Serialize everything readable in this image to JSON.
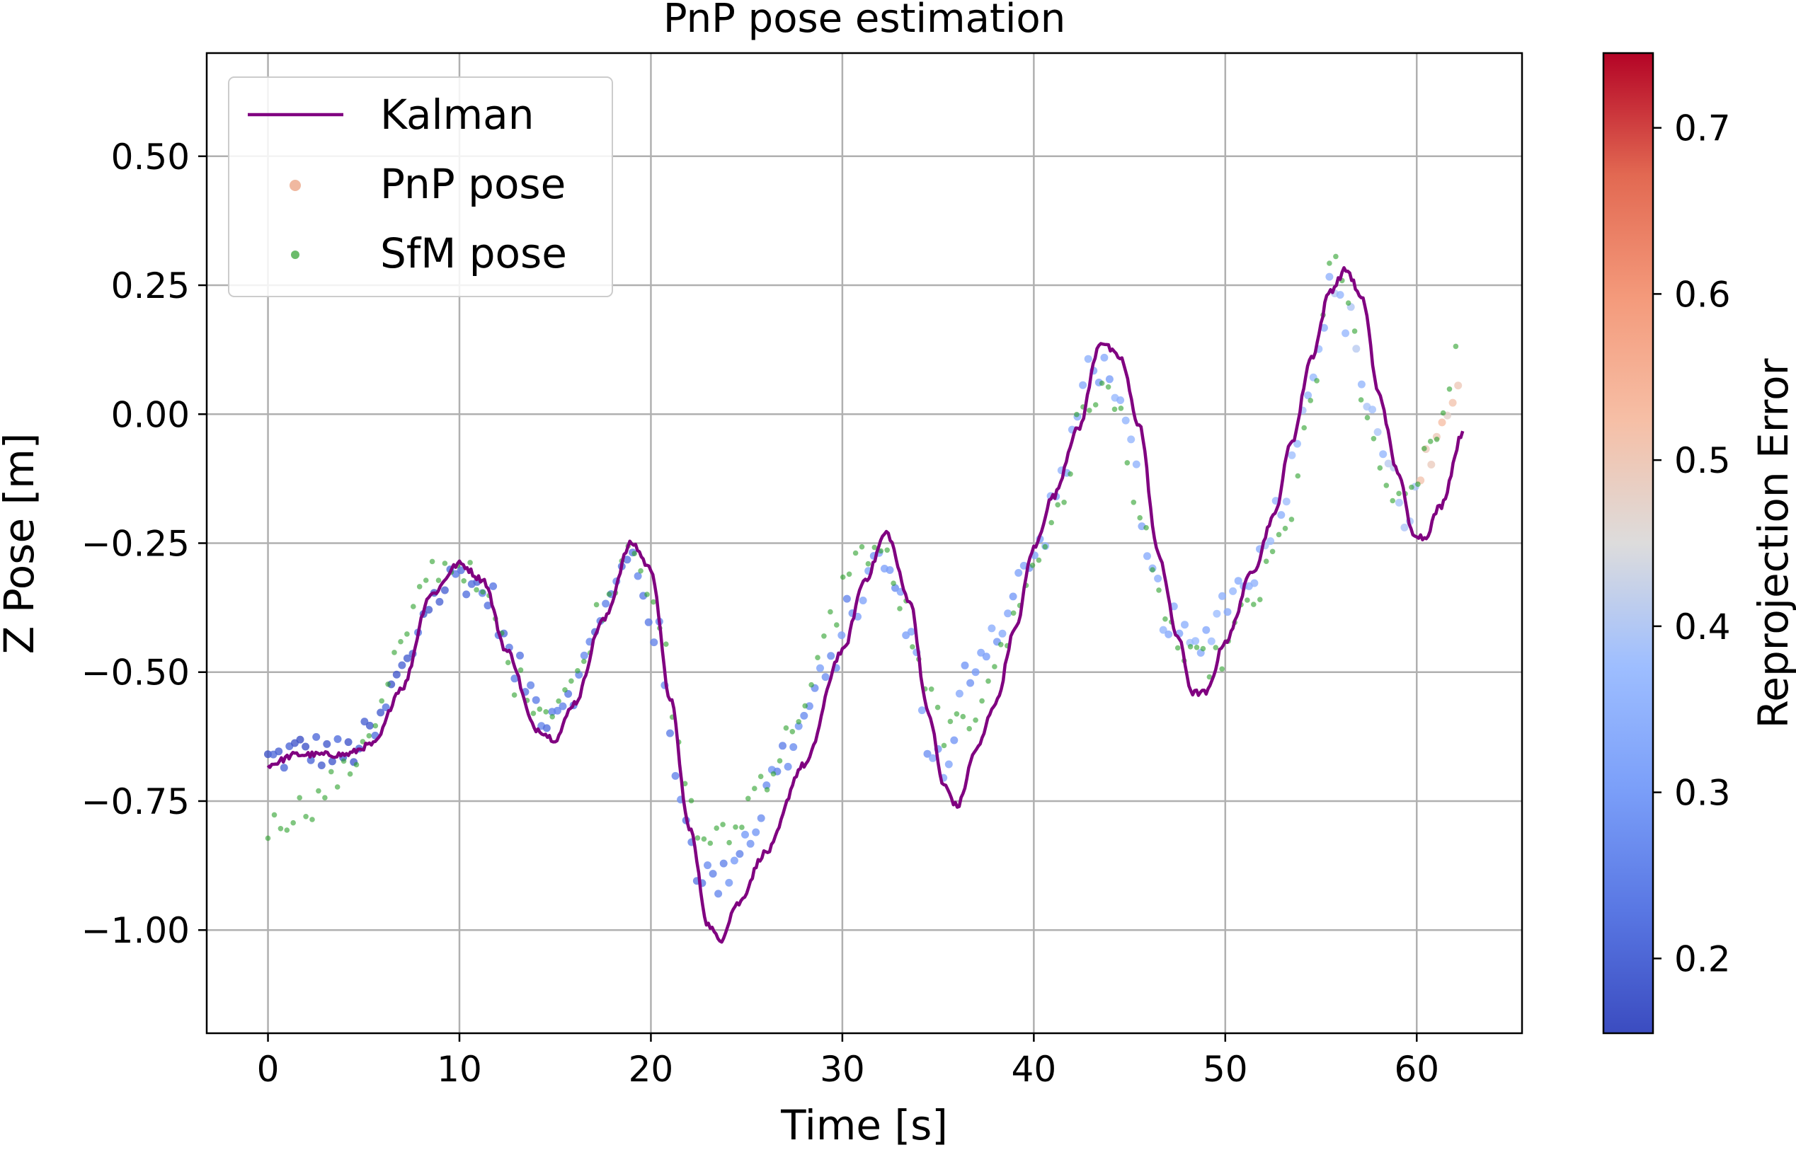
{
  "chart_data": {
    "type": "line+scatter",
    "title": "PnP pose estimation",
    "xlabel": "Time [s]",
    "ylabel": "Z Pose [m]",
    "xlim": [
      -3.2,
      65.5
    ],
    "ylim": [
      -1.2,
      0.7
    ],
    "x_ticks": [
      0,
      10,
      20,
      30,
      40,
      50,
      60
    ],
    "y_ticks": [
      0.5,
      0.25,
      0.0,
      -0.25,
      -0.5,
      -0.75,
      -1.0
    ],
    "x_tick_labels": [
      "0",
      "10",
      "20",
      "30",
      "40",
      "50",
      "60"
    ],
    "y_tick_labels": [
      "0.50",
      "0.25",
      "0.00",
      "−0.25",
      "−0.50",
      "−0.75",
      "−1.00"
    ],
    "grid": true,
    "legend": {
      "position": "top-left",
      "entries": [
        "Kalman",
        "PnP pose",
        "SfM pose"
      ]
    },
    "colorbar": {
      "label": "Reprojection Error",
      "range": [
        0.155,
        0.745
      ],
      "ticks": [
        0.2,
        0.3,
        0.4,
        0.5,
        0.6,
        0.7
      ],
      "tick_labels": [
        "0.2",
        "0.3",
        "0.4",
        "0.5",
        "0.6",
        "0.7"
      ],
      "colormap": "coolwarm"
    },
    "colors": {
      "kalman": "#800080",
      "sfm": "#2ca02c",
      "pnp_legend": "#f0b8a0"
    },
    "kalman_keyframes": [
      [
        0,
        -0.68
      ],
      [
        1.5,
        -0.66
      ],
      [
        4,
        -0.66
      ],
      [
        5.5,
        -0.64
      ],
      [
        7,
        -0.53
      ],
      [
        8.5,
        -0.35
      ],
      [
        10,
        -0.29
      ],
      [
        11.2,
        -0.32
      ],
      [
        12.5,
        -0.46
      ],
      [
        14,
        -0.61
      ],
      [
        15,
        -0.63
      ],
      [
        16,
        -0.56
      ],
      [
        17.5,
        -0.4
      ],
      [
        19,
        -0.25
      ],
      [
        20,
        -0.3
      ],
      [
        21,
        -0.55
      ],
      [
        22,
        -0.8
      ],
      [
        23,
        -0.99
      ],
      [
        23.6,
        -1.02
      ],
      [
        24.5,
        -0.95
      ],
      [
        26,
        -0.85
      ],
      [
        28,
        -0.68
      ],
      [
        30,
        -0.46
      ],
      [
        31.2,
        -0.32
      ],
      [
        32.3,
        -0.23
      ],
      [
        33.5,
        -0.36
      ],
      [
        34.5,
        -0.58
      ],
      [
        35.3,
        -0.72
      ],
      [
        36,
        -0.76
      ],
      [
        37,
        -0.65
      ],
      [
        38,
        -0.56
      ],
      [
        39,
        -0.42
      ],
      [
        40,
        -0.26
      ],
      [
        41,
        -0.16
      ],
      [
        42.3,
        -0.03
      ],
      [
        43.5,
        0.14
      ],
      [
        44.5,
        0.11
      ],
      [
        45.5,
        -0.02
      ],
      [
        46.5,
        -0.27
      ],
      [
        47.5,
        -0.43
      ],
      [
        48.3,
        -0.54
      ],
      [
        49,
        -0.54
      ],
      [
        50,
        -0.44
      ],
      [
        51.5,
        -0.3
      ],
      [
        52.5,
        -0.2
      ],
      [
        53.5,
        -0.05
      ],
      [
        54.5,
        0.11
      ],
      [
        55.5,
        0.24
      ],
      [
        56.3,
        0.28
      ],
      [
        57.2,
        0.22
      ],
      [
        58,
        0.04
      ],
      [
        59,
        -0.11
      ],
      [
        59.8,
        -0.23
      ],
      [
        60.4,
        -0.24
      ],
      [
        61.2,
        -0.18
      ],
      [
        62.5,
        -0.03
      ]
    ],
    "pnp_keyframes": [
      [
        0,
        -0.67
      ],
      [
        2,
        -0.65
      ],
      [
        4,
        -0.66
      ],
      [
        5.5,
        -0.62
      ],
      [
        7,
        -0.5
      ],
      [
        8.5,
        -0.36
      ],
      [
        10,
        -0.31
      ],
      [
        11.5,
        -0.35
      ],
      [
        13,
        -0.5
      ],
      [
        14.5,
        -0.58
      ],
      [
        16,
        -0.53
      ],
      [
        17.5,
        -0.38
      ],
      [
        19,
        -0.28
      ],
      [
        20.3,
        -0.42
      ],
      [
        21.3,
        -0.7
      ],
      [
        22.5,
        -0.88
      ],
      [
        23.5,
        -0.91
      ],
      [
        25,
        -0.82
      ],
      [
        27,
        -0.66
      ],
      [
        29,
        -0.52
      ],
      [
        30.5,
        -0.38
      ],
      [
        32,
        -0.28
      ],
      [
        33.5,
        -0.4
      ],
      [
        34.5,
        -0.64
      ],
      [
        35.5,
        -0.7
      ],
      [
        36.5,
        -0.5
      ],
      [
        38,
        -0.42
      ],
      [
        40,
        -0.28
      ],
      [
        41.5,
        -0.12
      ],
      [
        43,
        0.1
      ],
      [
        44,
        0.08
      ],
      [
        45,
        -0.06
      ],
      [
        46,
        -0.3
      ],
      [
        47,
        -0.4
      ],
      [
        48.5,
        -0.46
      ],
      [
        50,
        -0.36
      ],
      [
        51.5,
        -0.3
      ],
      [
        53,
        -0.16
      ],
      [
        54.5,
        0.08
      ],
      [
        55.5,
        0.24
      ],
      [
        56.5,
        0.18
      ],
      [
        57.5,
        0.02
      ],
      [
        58.5,
        -0.1
      ],
      [
        59.5,
        -0.2
      ],
      [
        60.5,
        -0.1
      ],
      [
        61.5,
        -0.04
      ],
      [
        62.3,
        0.08
      ]
    ],
    "sfm_keyframes": [
      [
        0,
        -0.8
      ],
      [
        2,
        -0.76
      ],
      [
        4,
        -0.7
      ],
      [
        5.5,
        -0.6
      ],
      [
        7,
        -0.45
      ],
      [
        8.5,
        -0.3
      ],
      [
        10,
        -0.29
      ],
      [
        11.5,
        -0.37
      ],
      [
        13,
        -0.52
      ],
      [
        14.5,
        -0.57
      ],
      [
        16,
        -0.52
      ],
      [
        17.5,
        -0.37
      ],
      [
        19,
        -0.24
      ],
      [
        20.5,
        -0.42
      ],
      [
        21.5,
        -0.66
      ],
      [
        22.5,
        -0.82
      ],
      [
        24,
        -0.82
      ],
      [
        26,
        -0.7
      ],
      [
        28,
        -0.57
      ],
      [
        29.5,
        -0.4
      ],
      [
        30.5,
        -0.28
      ],
      [
        32,
        -0.26
      ],
      [
        33,
        -0.36
      ],
      [
        34.5,
        -0.55
      ],
      [
        35.5,
        -0.62
      ],
      [
        36.5,
        -0.6
      ],
      [
        38,
        -0.48
      ],
      [
        40,
        -0.3
      ],
      [
        41.5,
        -0.16
      ],
      [
        42.5,
        0.0
      ],
      [
        43.5,
        0.05
      ],
      [
        44.5,
        0.0
      ],
      [
        45.5,
        -0.2
      ],
      [
        46.5,
        -0.36
      ],
      [
        48,
        -0.48
      ],
      [
        49.5,
        -0.48
      ],
      [
        51.5,
        -0.36
      ],
      [
        53,
        -0.24
      ],
      [
        54.5,
        0.0
      ],
      [
        55.5,
        0.3
      ],
      [
        56.5,
        0.2
      ],
      [
        57.5,
        -0.04
      ],
      [
        58.5,
        -0.14
      ],
      [
        59.5,
        -0.18
      ],
      [
        60.5,
        -0.08
      ],
      [
        61.5,
        0.02
      ],
      [
        62.3,
        0.16
      ]
    ]
  }
}
